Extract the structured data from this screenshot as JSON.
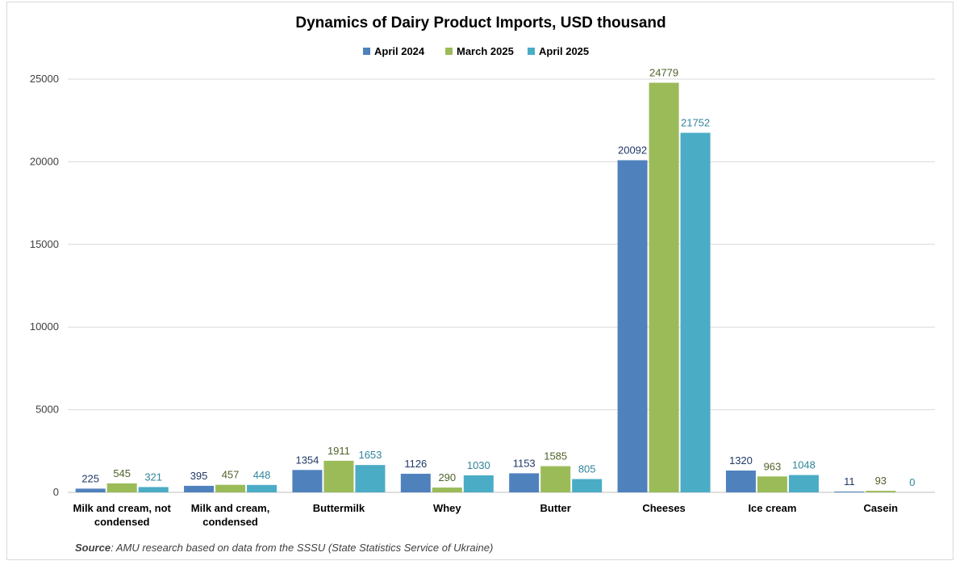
{
  "chart_data": {
    "type": "bar",
    "title": "Dynamics of Dairy Product Imports, USD thousand",
    "categories": [
      [
        "Milk and cream, not",
        "condensed"
      ],
      [
        "Milk and cream,",
        "condensed"
      ],
      [
        "Buttermilk"
      ],
      [
        "Whey"
      ],
      [
        "Butter"
      ],
      [
        "Cheeses"
      ],
      [
        "Ice cream"
      ],
      [
        "Casein"
      ]
    ],
    "series": [
      {
        "name": "April 2024",
        "color": "#4f81bd",
        "label_color": "#1f3864",
        "values": [
          225,
          395,
          1354,
          1126,
          1153,
          20092,
          1320,
          11
        ]
      },
      {
        "name": "March 2025",
        "color": "#9bbb59",
        "label_color": "#4f6228",
        "values": [
          545,
          457,
          1911,
          290,
          1585,
          24779,
          963,
          93
        ]
      },
      {
        "name": "April 2025",
        "color": "#4bacc6",
        "label_color": "#31849b",
        "values": [
          321,
          448,
          1653,
          1030,
          805,
          21752,
          1048,
          0
        ]
      }
    ],
    "ylim": [
      0,
      25000
    ],
    "yticks": [
      0,
      5000,
      10000,
      15000,
      20000,
      25000
    ],
    "grid": true,
    "legend_position": "top-center"
  },
  "source": {
    "label": "Source",
    "text": ": AMU research based on data from the SSSU (State Statistics Service of Ukraine)"
  }
}
